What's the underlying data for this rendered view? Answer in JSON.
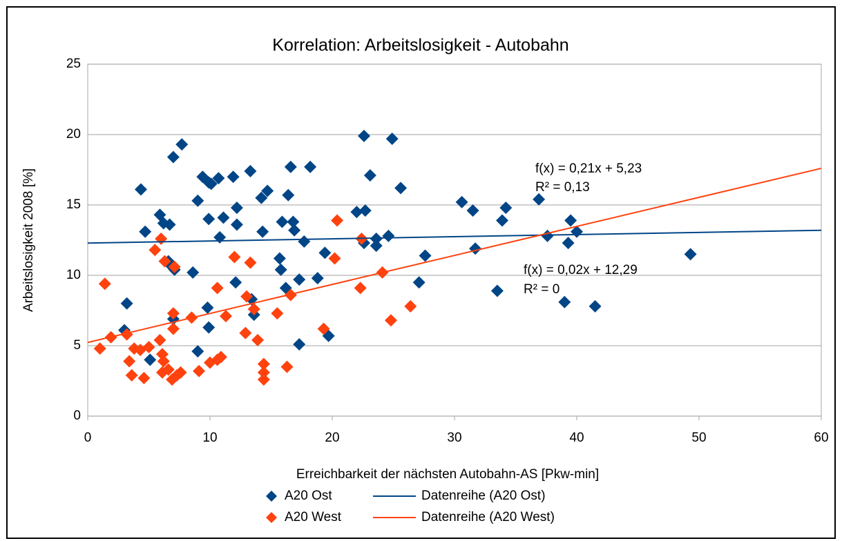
{
  "chart_data": {
    "type": "scatter",
    "title": "Korrelation: Arbeitslosigkeit - Autobahn",
    "xlabel": "Erreichbarkeit der nächsten Autobahn-AS [Pkw-min]",
    "ylabel": "Arbeitslosigkeit 2008 [%]",
    "xlim": [
      0,
      60
    ],
    "xticks": [
      0,
      10,
      20,
      30,
      40,
      50,
      60
    ],
    "ylim": [
      0,
      25
    ],
    "yticks": [
      0,
      5,
      10,
      15,
      20,
      25
    ],
    "grid": true,
    "legend": "bottom",
    "annotations": [
      "f(x) = 0,21x + 5,23",
      "R² = 0,13",
      "f(x) = 0,02x + 12,29",
      "R² = 0"
    ],
    "series": [
      {
        "name": "A20 Ost",
        "color": "#004586",
        "type": "scatter",
        "x": [
          4.35,
          4.7,
          3.2,
          5.1,
          5.9,
          6.2,
          6.7,
          6.6,
          6.8,
          7.1,
          7.0,
          7.0,
          7.7,
          8.6,
          9.0,
          9.0,
          9.4,
          9.9,
          10.1,
          10.7,
          9.8,
          9.9,
          9.9,
          11.1,
          10.8,
          11.9,
          12.2,
          12.2,
          12.1,
          13.3,
          13.4,
          13.6,
          14.2,
          14.7,
          14.3,
          15.7,
          15.8,
          15.9,
          16.2,
          16.4,
          16.6,
          16.8,
          16.9,
          17.3,
          17.3,
          17.7,
          18.2,
          18.8,
          19.4,
          19.7,
          22.0,
          22.7,
          22.6,
          22.6,
          23.1,
          23.6,
          23.6,
          24.6,
          24.9,
          25.6,
          27.6,
          27.1,
          30.6,
          31.5,
          31.7,
          33.5,
          33.9,
          34.2,
          36.9,
          37.6,
          39.0,
          39.3,
          39.5,
          40.0,
          41.5,
          49.3,
          3.0
        ],
        "values": [
          16.1,
          13.1,
          8.0,
          4.0,
          14.3,
          13.7,
          13.6,
          11.0,
          10.7,
          10.4,
          6.9,
          18.4,
          19.3,
          10.2,
          4.6,
          15.3,
          17.0,
          16.6,
          16.5,
          16.9,
          7.7,
          6.3,
          14.0,
          14.1,
          12.7,
          17.0,
          14.8,
          13.6,
          9.5,
          17.4,
          8.3,
          7.2,
          15.5,
          16.0,
          13.1,
          11.2,
          10.4,
          13.8,
          9.1,
          15.7,
          17.7,
          13.8,
          13.2,
          9.7,
          5.1,
          12.4,
          17.7,
          9.8,
          11.6,
          5.7,
          14.5,
          14.6,
          12.3,
          19.9,
          17.1,
          12.6,
          12.1,
          12.8,
          19.7,
          16.2,
          11.4,
          9.5,
          15.2,
          14.6,
          11.9,
          8.9,
          13.9,
          14.8,
          15.4,
          12.8,
          8.1,
          12.3,
          13.9,
          13.1,
          7.8,
          11.5,
          6.1
        ]
      },
      {
        "name": "A20 West",
        "color": "#ff420e",
        "type": "scatter",
        "x": [
          1.0,
          1.4,
          1.9,
          3.2,
          3.4,
          3.6,
          3.8,
          4.3,
          4.6,
          5.0,
          5.5,
          5.9,
          6.0,
          6.1,
          6.2,
          6.1,
          6.3,
          6.6,
          6.9,
          7.0,
          7.0,
          7.1,
          7.3,
          7.6,
          8.5,
          9.1,
          10.0,
          10.6,
          10.6,
          10.9,
          11.3,
          12.0,
          12.9,
          13.0,
          13.3,
          13.6,
          13.9,
          14.4,
          14.4,
          14.4,
          15.5,
          16.3,
          16.6,
          19.3,
          20.2,
          20.4,
          22.3,
          22.4,
          24.1,
          24.8,
          26.4
        ],
        "values": [
          4.8,
          9.4,
          5.6,
          5.8,
          3.9,
          2.9,
          4.8,
          4.7,
          2.7,
          4.9,
          11.8,
          5.4,
          12.6,
          4.4,
          3.9,
          3.1,
          11.0,
          3.3,
          2.6,
          6.2,
          7.3,
          10.6,
          2.9,
          3.1,
          7.0,
          3.2,
          3.8,
          9.1,
          4.0,
          4.2,
          7.1,
          11.3,
          5.9,
          8.5,
          10.9,
          7.6,
          5.4,
          3.7,
          3.1,
          2.6,
          7.3,
          3.5,
          8.6,
          6.2,
          11.2,
          13.9,
          9.1,
          12.6,
          10.2,
          6.8,
          7.8
        ]
      },
      {
        "name": "Datenreihe (A20 Ost)",
        "color": "#004586",
        "type": "line",
        "x": [
          0,
          60
        ],
        "values": [
          12.29,
          13.2
        ]
      },
      {
        "name": "Datenreihe (A20 West)",
        "color": "#ff420e",
        "type": "line",
        "x": [
          0,
          60
        ],
        "values": [
          5.23,
          17.6
        ]
      }
    ]
  }
}
